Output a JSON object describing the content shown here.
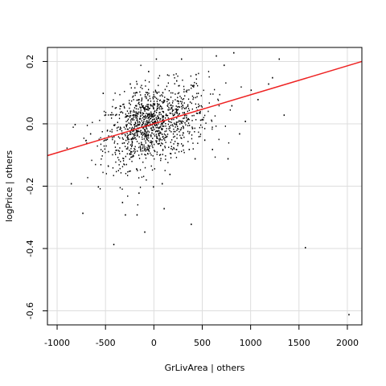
{
  "chart_data": {
    "type": "scatter",
    "xlabel": "GrLivArea | others",
    "ylabel": "logPrice | others",
    "xlim": [
      -1100,
      2150
    ],
    "ylim": [
      -0.645,
      0.245
    ],
    "x_ticks": [
      -1000,
      -500,
      0,
      500,
      1000,
      1500,
      2000
    ],
    "x_tick_labels": [
      "-1000",
      "-500",
      "0",
      "500",
      "1000",
      "1500",
      "2000"
    ],
    "y_ticks": [
      -0.6,
      -0.4,
      -0.2,
      0.0,
      0.2
    ],
    "y_tick_labels": [
      "-0.6",
      "-0.4",
      "-0.2",
      "0.0",
      "0.2"
    ],
    "grid": true,
    "point_color": "#000000",
    "line_color": "#ee2222",
    "grid_color": "#dddddd",
    "regression_line": {
      "x": [
        -1100,
        2150
      ],
      "y": [
        -0.102,
        0.2
      ]
    },
    "points": [
      [
        1560,
        -0.395
      ],
      [
        2010,
        -0.61
      ],
      [
        -420,
        -0.385
      ],
      [
        -860,
        -0.19
      ],
      [
        -740,
        -0.285
      ],
      [
        -100,
        -0.345
      ],
      [
        -180,
        -0.29
      ],
      [
        -300,
        -0.29
      ],
      [
        100,
        -0.27
      ],
      [
        380,
        -0.32
      ],
      [
        -330,
        -0.25
      ],
      [
        -580,
        -0.2
      ],
      [
        1290,
        0.21
      ],
      [
        1340,
        0.03
      ],
      [
        1180,
        0.13
      ],
      [
        1070,
        0.08
      ],
      [
        800,
        0.06
      ],
      [
        820,
        0.23
      ],
      [
        640,
        0.22
      ],
      [
        720,
        0.19
      ],
      [
        880,
        -0.03
      ],
      [
        940,
        0.01
      ],
      [
        280,
        0.21
      ],
      [
        430,
        0.16
      ],
      [
        -530,
        0.1
      ],
      [
        -820,
        0.0
      ],
      [
        -700,
        -0.06
      ],
      [
        -660,
        -0.03
      ],
      [
        80,
        -0.19
      ],
      [
        -10,
        -0.2
      ],
      [
        -160,
        -0.22
      ],
      [
        160,
        -0.16
      ],
      [
        520,
        -0.05
      ],
      [
        600,
        -0.08
      ],
      [
        420,
        -0.11
      ],
      [
        230,
        0.14
      ],
      [
        -60,
        0.17
      ],
      [
        -250,
        0.13
      ],
      [
        -180,
        0.13
      ],
      [
        760,
        -0.11
      ],
      [
        20,
        0.21
      ],
      [
        1000,
        0.11
      ],
      [
        1220,
        0.15
      ],
      [
        360,
        -0.08
      ]
    ],
    "cluster": {
      "center": [
        -40,
        0.0
      ],
      "sx": 270,
      "sy": 0.065,
      "rho": 0.35,
      "count": 1150
    }
  }
}
